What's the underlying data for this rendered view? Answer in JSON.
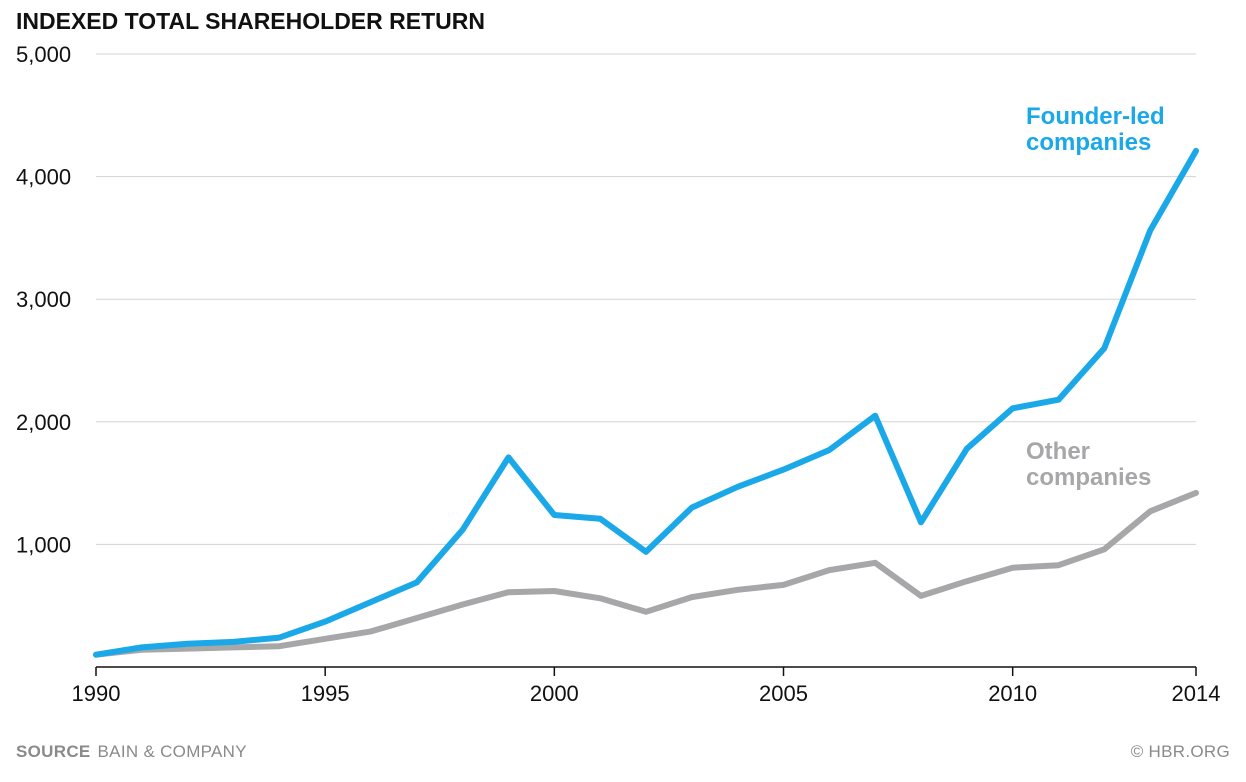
{
  "chart_data": {
    "type": "line",
    "title": "INDEXED TOTAL SHAREHOLDER RETURN",
    "xlabel": "",
    "ylabel": "",
    "x": [
      1990,
      1991,
      1992,
      1993,
      1994,
      1995,
      1996,
      1997,
      1998,
      1999,
      2000,
      2001,
      2002,
      2003,
      2004,
      2005,
      2006,
      2007,
      2008,
      2009,
      2010,
      2011,
      2012,
      2013,
      2014
    ],
    "xlim": [
      1990,
      2014
    ],
    "ylim": [
      0,
      5000
    ],
    "x_ticks": [
      1990,
      1995,
      2000,
      2005,
      2010,
      2014
    ],
    "x_tick_labels": [
      "1990",
      "1995",
      "2000",
      "2005",
      "2010",
      "2014"
    ],
    "y_ticks": [
      1000,
      2000,
      3000,
      4000,
      5000
    ],
    "y_tick_labels": [
      "1,000",
      "2,000",
      "3,000",
      "4,000",
      "5,000"
    ],
    "grid": true,
    "series": [
      {
        "name": "Founder-led companies",
        "label_lines": [
          "Founder-led",
          "companies"
        ],
        "color": "#1ba8e8",
        "values": [
          100,
          160,
          190,
          205,
          240,
          370,
          530,
          690,
          1120,
          1710,
          1240,
          1210,
          940,
          1300,
          1470,
          1610,
          1770,
          2050,
          1180,
          1780,
          2110,
          2180,
          2600,
          3560,
          4210
        ]
      },
      {
        "name": "Other companies",
        "label_lines": [
          "Other",
          "companies"
        ],
        "color": "#a7a7a9",
        "values": [
          100,
          140,
          150,
          160,
          170,
          230,
          290,
          400,
          510,
          610,
          620,
          560,
          450,
          570,
          630,
          670,
          790,
          850,
          580,
          700,
          810,
          830,
          960,
          1270,
          1420
        ]
      }
    ]
  },
  "footer": {
    "source_label": "SOURCE",
    "source_text": "BAIN & COMPANY",
    "credit": "© HBR.ORG"
  },
  "colors": {
    "axis": "#111111",
    "grid": "#d3d3d3",
    "tick_label": "#111111",
    "footer_text": "#8a8a8a"
  }
}
